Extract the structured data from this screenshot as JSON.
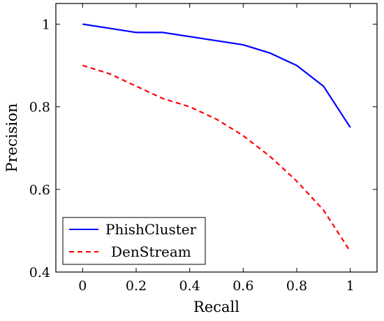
{
  "chart_data": {
    "type": "line",
    "title": "",
    "xlabel": "Recall",
    "ylabel": "Precision",
    "xlim": [
      -0.1,
      1.1
    ],
    "ylim": [
      0.4,
      1.05
    ],
    "xticks": [
      0,
      0.2,
      0.4,
      0.6,
      0.8,
      1
    ],
    "xtick_labels": [
      "0",
      "0.2",
      "0.4",
      "0.6",
      "0.8",
      "1"
    ],
    "yticks": [
      0.4,
      0.6,
      0.8,
      1
    ],
    "ytick_labels": [
      "0.4",
      "0.6",
      "0.8",
      "1"
    ],
    "grid": false,
    "legend_position": "bottom-left",
    "series": [
      {
        "name": "PhishCluster",
        "color": "#0000ff",
        "style": "solid",
        "x": [
          0,
          0.1,
          0.2,
          0.3,
          0.4,
          0.5,
          0.6,
          0.7,
          0.8,
          0.9,
          1.0
        ],
        "y": [
          1.0,
          0.99,
          0.98,
          0.98,
          0.97,
          0.96,
          0.95,
          0.93,
          0.9,
          0.85,
          0.75
        ]
      },
      {
        "name": "DenStream",
        "color": "#ff0000",
        "style": "dashed",
        "x": [
          0,
          0.1,
          0.2,
          0.3,
          0.4,
          0.5,
          0.6,
          0.7,
          0.8,
          0.9,
          1.0
        ],
        "y": [
          0.9,
          0.88,
          0.85,
          0.82,
          0.8,
          0.77,
          0.73,
          0.68,
          0.62,
          0.55,
          0.45
        ]
      }
    ]
  }
}
